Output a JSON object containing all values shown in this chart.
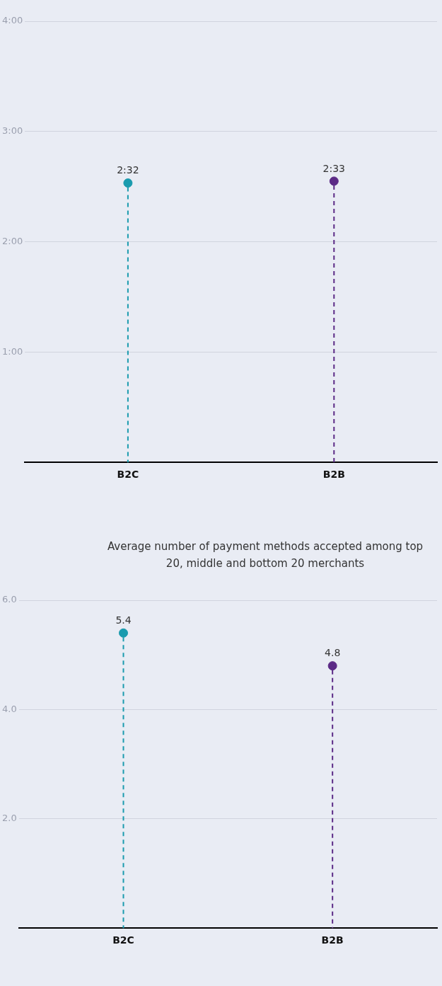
{
  "chart_data": [
    {
      "type": "lollipop",
      "categories": [
        "B2C",
        "B2B"
      ],
      "values": [
        2.533,
        2.55
      ],
      "colors": [
        "#1a9bae",
        "#5b2a86"
      ],
      "value_labels": [
        "2:32",
        "2:33"
      ],
      "ylim": [
        0,
        4
      ],
      "yticks": [
        {
          "value": 0,
          "label": null
        },
        {
          "value": 1,
          "label": "1:00"
        },
        {
          "value": 2,
          "label": "2:00"
        },
        {
          "value": 3,
          "label": "3:00"
        },
        {
          "value": 4,
          "label": "4:00"
        }
      ],
      "grid": "y",
      "line_style": "dashed",
      "marker": "circle"
    },
    {
      "type": "lollipop",
      "title": "Average number of payment methods accepted among top 20, middle and bottom 20 merchants",
      "categories": [
        "B2C",
        "B2B"
      ],
      "values": [
        5.4,
        4.8
      ],
      "colors": [
        "#1a9bae",
        "#5b2a86"
      ],
      "data_labels": true,
      "ylim": [
        0,
        6
      ],
      "yticks": [
        {
          "value": 0,
          "label": null
        },
        {
          "value": 2,
          "label": "2.0"
        },
        {
          "value": 4,
          "label": "4.0"
        },
        {
          "value": 6,
          "label": "6.0"
        }
      ],
      "grid": "y",
      "line_style": "dashed",
      "marker": "circle"
    }
  ]
}
